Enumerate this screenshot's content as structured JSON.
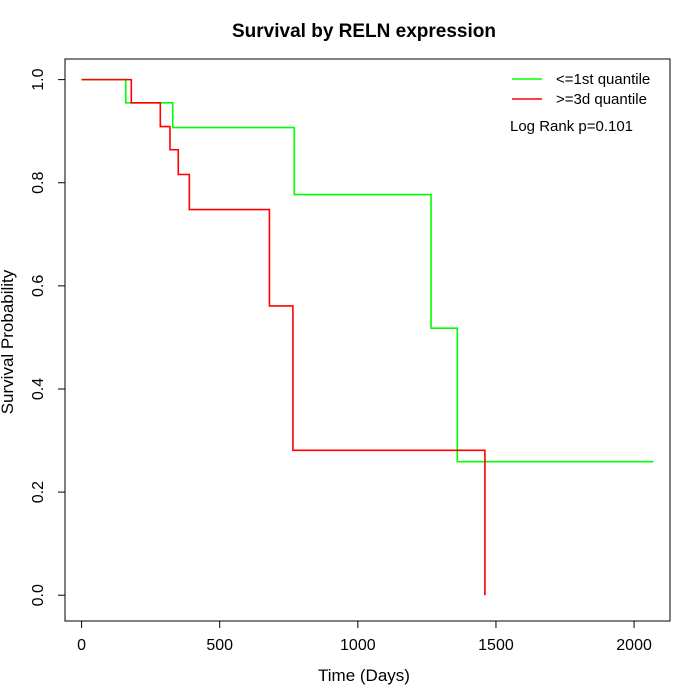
{
  "chart_data": {
    "type": "line",
    "step": true,
    "title": "Survival by RELN expression",
    "xlabel": "Time (Days)",
    "ylabel": "Survival Probability",
    "xlim": [
      -60,
      2130
    ],
    "ylim": [
      -0.05,
      1.04
    ],
    "xticks": [
      0,
      500,
      1000,
      1500,
      2000
    ],
    "yticks": [
      0.0,
      0.2,
      0.4,
      0.6,
      0.8,
      1.0
    ],
    "xtick_labels": [
      "0",
      "500",
      "1000",
      "1500",
      "2000"
    ],
    "ytick_labels": [
      "0.0",
      "0.2",
      "0.4",
      "0.6",
      "0.8",
      "1.0"
    ],
    "grid": false,
    "legend_position": "top-right",
    "annotation": "Log Rank p=0.101",
    "series": [
      {
        "name": "<=1st quantile",
        "color": "#00ff00",
        "x": [
          0,
          160,
          330,
          770,
          1265,
          1360,
          2070
        ],
        "y": [
          1.0,
          0.955,
          0.907,
          0.777,
          0.518,
          0.259,
          0.259
        ]
      },
      {
        "name": ">=3d quantile",
        "color": "#ff0000",
        "x": [
          0,
          180,
          285,
          320,
          350,
          390,
          680,
          765,
          1460,
          1460
        ],
        "y": [
          1.0,
          0.955,
          0.909,
          0.864,
          0.816,
          0.748,
          0.561,
          0.281,
          0.281,
          0.0
        ]
      }
    ]
  }
}
